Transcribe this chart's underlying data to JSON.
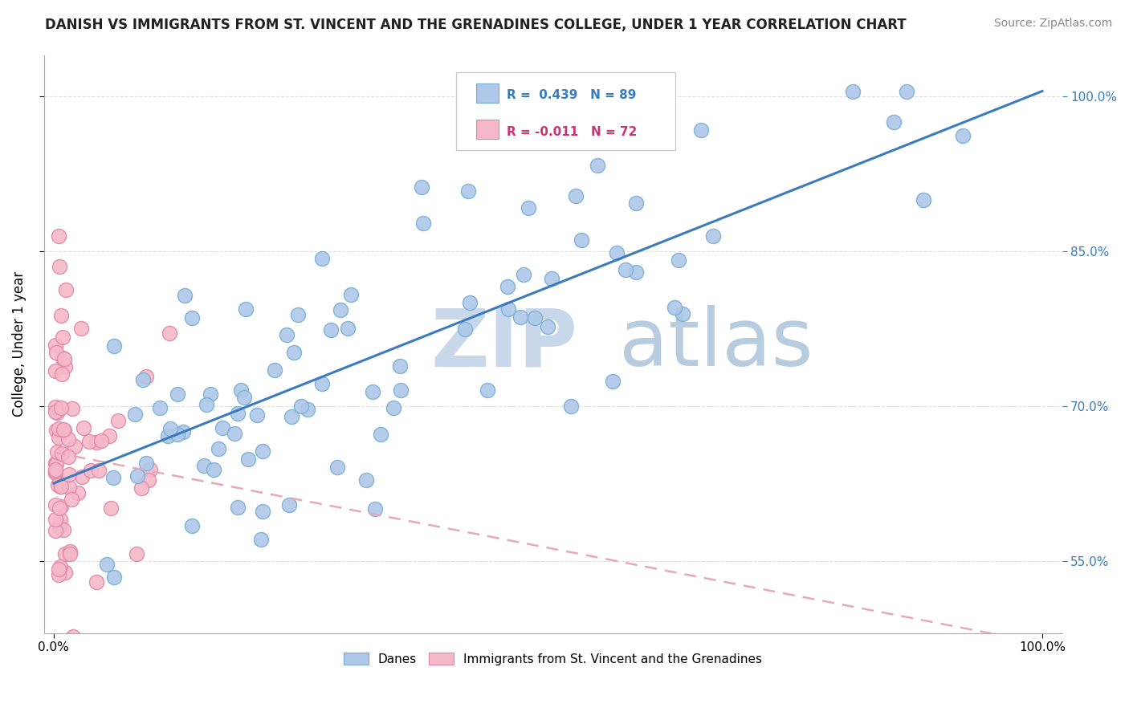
{
  "title": "DANISH VS IMMIGRANTS FROM ST. VINCENT AND THE GRENADINES COLLEGE, UNDER 1 YEAR CORRELATION CHART",
  "source_text": "Source: ZipAtlas.com",
  "ylabel": "College, Under 1 year",
  "blue_R": 0.439,
  "blue_N": 89,
  "pink_R": -0.011,
  "pink_N": 72,
  "blue_color": "#adc8e8",
  "blue_edge": "#7aadd4",
  "pink_color": "#f5b8c8",
  "pink_edge": "#e088a8",
  "trend_blue": "#3a7bbf",
  "trend_pink": "#e8a8bc",
  "watermark_zip": "ZIP",
  "watermark_atlas": "atlas",
  "watermark_color": "#c8d8ea",
  "legend_blue_label": "Danes",
  "legend_pink_label": "Immigrants from St. Vincent and the Grenadines",
  "yticks": [
    0.55,
    0.7,
    0.85,
    1.0
  ],
  "ytick_labels": [
    "55.0%",
    "70.0%",
    "85.0%",
    "100.0%"
  ],
  "ylim": [
    0.48,
    1.04
  ],
  "xlim": [
    -0.01,
    1.02
  ],
  "blue_trend_start_y": 0.625,
  "blue_trend_end_y": 1.005,
  "pink_trend_start_y": 0.655,
  "pink_trend_end_y": 0.47,
  "title_fontsize": 12,
  "source_fontsize": 10,
  "tick_fontsize": 11
}
